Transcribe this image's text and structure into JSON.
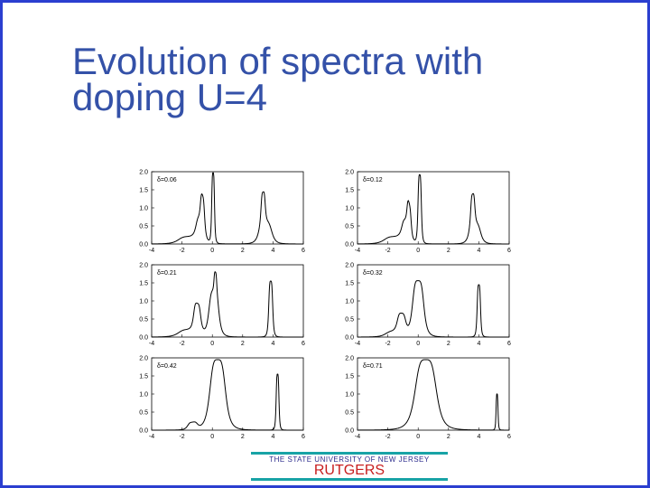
{
  "slide": {
    "title_line1": "Evolution of spectra with",
    "title_line2": "doping U=4",
    "frame_color": "#2b3fd0",
    "title_color": "#3451a8"
  },
  "logo": {
    "university": "THE STATE UNIVERSITY OF NEW JERSEY",
    "name": "RUTGERS",
    "bar_color": "#18a3a6",
    "name_color": "#c81e1e"
  },
  "chart_data": [
    {
      "type": "line",
      "label": "δ=0.06",
      "xlim": [
        -4,
        6
      ],
      "ylim": [
        0,
        2.0
      ],
      "x_ticks": [
        "-4",
        "-2",
        "0",
        "2",
        "4",
        "6"
      ],
      "y_ticks": [
        "0.0",
        "0.5",
        "1.0",
        "1.5",
        "2.0"
      ],
      "peaks": [
        {
          "center": -1.5,
          "height": 0.2,
          "width": 0.8
        },
        {
          "center": -0.8,
          "height": 0.55,
          "width": 0.3
        },
        {
          "center": -0.65,
          "height": 0.75,
          "width": 0.15
        },
        {
          "center": 0.05,
          "height": 1.95,
          "width": 0.1
        },
        {
          "center": 3.5,
          "height": 0.6,
          "width": 0.45
        },
        {
          "center": 3.35,
          "height": 0.85,
          "width": 0.15
        }
      ]
    },
    {
      "type": "line",
      "label": "δ=0.12",
      "xlim": [
        -4,
        6
      ],
      "ylim": [
        0,
        2.0
      ],
      "x_ticks": [
        "-4",
        "-2",
        "0",
        "2",
        "4",
        "6"
      ],
      "y_ticks": [
        "0.0",
        "0.5",
        "1.0",
        "1.5",
        "2.0"
      ],
      "peaks": [
        {
          "center": -1.5,
          "height": 0.2,
          "width": 0.8
        },
        {
          "center": -0.8,
          "height": 0.5,
          "width": 0.3
        },
        {
          "center": -0.6,
          "height": 0.65,
          "width": 0.15
        },
        {
          "center": 0.1,
          "height": 1.9,
          "width": 0.12
        },
        {
          "center": 3.75,
          "height": 0.55,
          "width": 0.4
        },
        {
          "center": 3.6,
          "height": 0.85,
          "width": 0.15
        }
      ]
    },
    {
      "type": "line",
      "label": "δ=0.21",
      "xlim": [
        -4,
        6
      ],
      "ylim": [
        0,
        2.0
      ],
      "x_ticks": [
        "-4",
        "-2",
        "0",
        "2",
        "4",
        "6"
      ],
      "y_ticks": [
        "0.0",
        "0.5",
        "1.0",
        "1.5",
        "2.0"
      ],
      "peaks": [
        {
          "center": -1.5,
          "height": 0.2,
          "width": 0.8
        },
        {
          "center": -1.0,
          "height": 0.75,
          "width": 0.25
        },
        {
          "center": 0.1,
          "height": 1.25,
          "width": 0.35
        },
        {
          "center": 0.2,
          "height": 0.55,
          "width": 0.1
        },
        {
          "center": 3.85,
          "height": 1.55,
          "width": 0.14
        }
      ]
    },
    {
      "type": "line",
      "label": "δ=0.32",
      "xlim": [
        -4,
        6
      ],
      "ylim": [
        0,
        2.0
      ],
      "x_ticks": [
        "-4",
        "-2",
        "0",
        "2",
        "4",
        "6"
      ],
      "y_ticks": [
        "0.0",
        "0.5",
        "1.0",
        "1.5",
        "2.0"
      ],
      "peaks": [
        {
          "center": -1.5,
          "height": 0.15,
          "width": 0.7
        },
        {
          "center": -1.1,
          "height": 0.5,
          "width": 0.3
        },
        {
          "center": 0.0,
          "height": 1.55,
          "width": 0.4
        },
        {
          "center": 4.0,
          "height": 1.45,
          "width": 0.12
        }
      ]
    },
    {
      "type": "line",
      "label": "δ=0.42",
      "xlim": [
        -4,
        6
      ],
      "ylim": [
        0,
        2.0
      ],
      "x_ticks": [
        "-4",
        "-2",
        "0",
        "2",
        "4",
        "6"
      ],
      "y_ticks": [
        "0.0",
        "0.5",
        "1.0",
        "1.5",
        "2.0"
      ],
      "peaks": [
        {
          "center": -1.3,
          "height": 0.2,
          "width": 0.35
        },
        {
          "center": 0.35,
          "height": 1.95,
          "width": 0.55
        },
        {
          "center": 4.3,
          "height": 1.55,
          "width": 0.1
        }
      ]
    },
    {
      "type": "line",
      "label": "δ=0.71",
      "xlim": [
        -4,
        6
      ],
      "ylim": [
        0,
        2.0
      ],
      "x_ticks": [
        "-4",
        "-2",
        "0",
        "2",
        "4",
        "6"
      ],
      "y_ticks": [
        "0.0",
        "0.5",
        "1.0",
        "1.5",
        "2.0"
      ],
      "peaks": [
        {
          "center": 0.5,
          "height": 1.95,
          "width": 0.75
        },
        {
          "center": 5.2,
          "height": 1.0,
          "width": 0.07
        }
      ]
    }
  ]
}
